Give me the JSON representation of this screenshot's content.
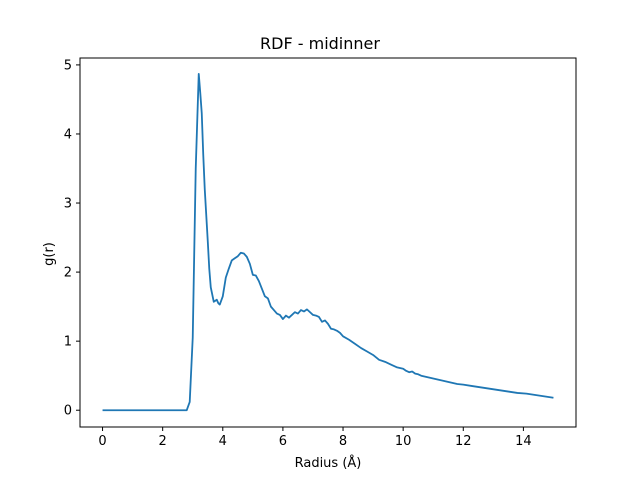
{
  "chart_data": {
    "type": "line",
    "title": "RDF - midinner",
    "xlabel": "Radius (Å)",
    "ylabel": "g(r)",
    "xlim": [
      -0.75,
      15.75
    ],
    "ylim": [
      -0.243,
      5.1
    ],
    "xticks": [
      0,
      2,
      4,
      6,
      8,
      10,
      12,
      14
    ],
    "yticks": [
      0,
      1,
      2,
      3,
      4,
      5
    ],
    "grid": false,
    "series": [
      {
        "color": "#1f77b4",
        "x": [
          0,
          0.5,
          1,
          1.5,
          2,
          2.5,
          2.8,
          2.9,
          3.0,
          3.1,
          3.2,
          3.25,
          3.3,
          3.35,
          3.4,
          3.5,
          3.55,
          3.6,
          3.7,
          3.8,
          3.85,
          3.9,
          4.0,
          4.1,
          4.2,
          4.3,
          4.4,
          4.5,
          4.6,
          4.7,
          4.8,
          4.9,
          5.0,
          5.1,
          5.2,
          5.3,
          5.4,
          5.5,
          5.6,
          5.7,
          5.8,
          5.9,
          6.0,
          6.1,
          6.2,
          6.3,
          6.4,
          6.5,
          6.6,
          6.7,
          6.8,
          6.9,
          7.0,
          7.1,
          7.2,
          7.3,
          7.4,
          7.5,
          7.6,
          7.7,
          7.8,
          7.9,
          8.0,
          8.2,
          8.4,
          8.6,
          8.8,
          9.0,
          9.2,
          9.4,
          9.6,
          9.8,
          10.0,
          10.1,
          10.2,
          10.3,
          10.4,
          10.5,
          10.6,
          10.8,
          11.0,
          11.2,
          11.4,
          11.6,
          11.8,
          12.0,
          12.3,
          12.6,
          12.9,
          13.2,
          13.5,
          13.8,
          14.1,
          14.4,
          14.7,
          15.0
        ],
        "y": [
          0,
          0,
          0,
          0,
          0,
          0,
          0,
          0.12,
          1.05,
          3.5,
          4.87,
          4.6,
          4.3,
          3.7,
          3.2,
          2.45,
          2.05,
          1.78,
          1.57,
          1.6,
          1.55,
          1.53,
          1.65,
          1.92,
          2.05,
          2.17,
          2.2,
          2.23,
          2.28,
          2.27,
          2.22,
          2.12,
          1.96,
          1.95,
          1.87,
          1.76,
          1.65,
          1.62,
          1.5,
          1.45,
          1.4,
          1.38,
          1.32,
          1.37,
          1.34,
          1.38,
          1.42,
          1.4,
          1.45,
          1.43,
          1.46,
          1.42,
          1.38,
          1.37,
          1.35,
          1.28,
          1.3,
          1.25,
          1.18,
          1.17,
          1.15,
          1.12,
          1.07,
          1.02,
          0.96,
          0.9,
          0.85,
          0.8,
          0.73,
          0.7,
          0.66,
          0.62,
          0.6,
          0.57,
          0.55,
          0.56,
          0.53,
          0.52,
          0.5,
          0.48,
          0.46,
          0.44,
          0.42,
          0.4,
          0.38,
          0.37,
          0.35,
          0.33,
          0.31,
          0.29,
          0.27,
          0.25,
          0.24,
          0.22,
          0.2,
          0.18
        ]
      }
    ]
  }
}
